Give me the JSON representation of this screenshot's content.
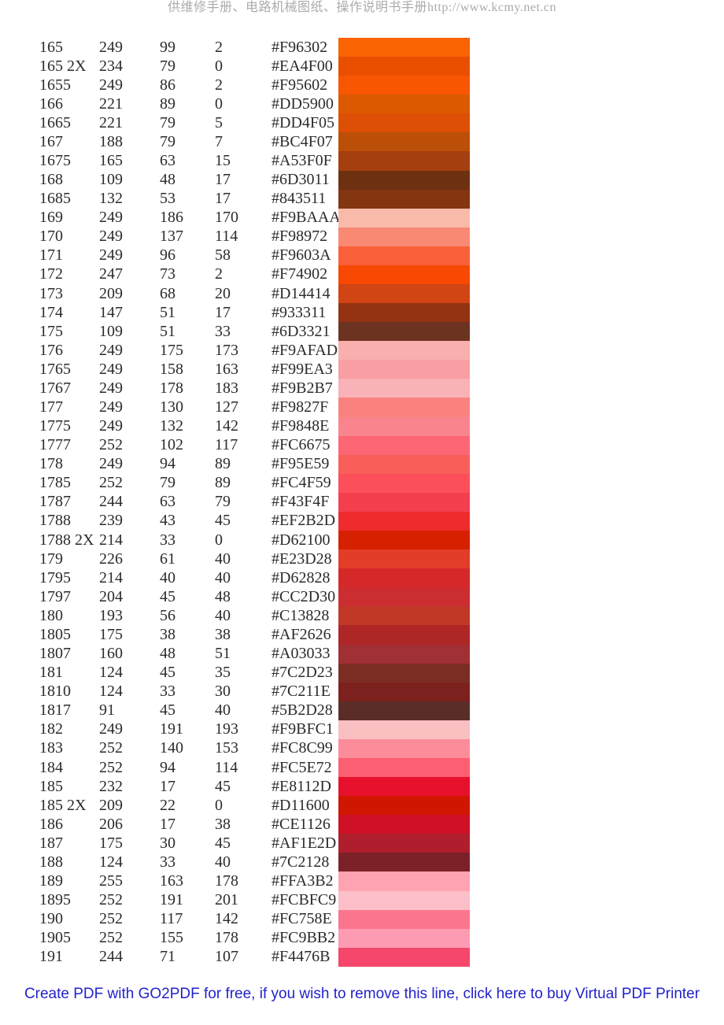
{
  "header": {
    "text": "供维修手册、电路机械图纸、操作说明书手册http://www.kcmy.net.cn"
  },
  "table": {
    "rows": [
      {
        "code": "165",
        "r": 249,
        "g": 99,
        "b": 2,
        "hex": "#F96302"
      },
      {
        "code": "165 2X",
        "r": 234,
        "g": 79,
        "b": 0,
        "hex": "#EA4F00"
      },
      {
        "code": "1655",
        "r": 249,
        "g": 86,
        "b": 2,
        "hex": "#F95602"
      },
      {
        "code": "166",
        "r": 221,
        "g": 89,
        "b": 0,
        "hex": "#DD5900"
      },
      {
        "code": "1665",
        "r": 221,
        "g": 79,
        "b": 5,
        "hex": "#DD4F05"
      },
      {
        "code": "167",
        "r": 188,
        "g": 79,
        "b": 7,
        "hex": "#BC4F07"
      },
      {
        "code": "1675",
        "r": 165,
        "g": 63,
        "b": 15,
        "hex": "#A53F0F"
      },
      {
        "code": "168",
        "r": 109,
        "g": 48,
        "b": 17,
        "hex": "#6D3011"
      },
      {
        "code": "1685",
        "r": 132,
        "g": 53,
        "b": 17,
        "hex": "#843511"
      },
      {
        "code": "169",
        "r": 249,
        "g": 186,
        "b": 170,
        "hex": "#F9BAAA"
      },
      {
        "code": "170",
        "r": 249,
        "g": 137,
        "b": 114,
        "hex": "#F98972"
      },
      {
        "code": "171",
        "r": 249,
        "g": 96,
        "b": 58,
        "hex": "#F9603A"
      },
      {
        "code": "172",
        "r": 247,
        "g": 73,
        "b": 2,
        "hex": "#F74902"
      },
      {
        "code": "173",
        "r": 209,
        "g": 68,
        "b": 20,
        "hex": "#D14414"
      },
      {
        "code": "174",
        "r": 147,
        "g": 51,
        "b": 17,
        "hex": "#933311"
      },
      {
        "code": "175",
        "r": 109,
        "g": 51,
        "b": 33,
        "hex": "#6D3321"
      },
      {
        "code": "176",
        "r": 249,
        "g": 175,
        "b": 173,
        "hex": "#F9AFAD"
      },
      {
        "code": "1765",
        "r": 249,
        "g": 158,
        "b": 163,
        "hex": "#F99EA3"
      },
      {
        "code": "1767",
        "r": 249,
        "g": 178,
        "b": 183,
        "hex": "#F9B2B7"
      },
      {
        "code": "177",
        "r": 249,
        "g": 130,
        "b": 127,
        "hex": "#F9827F"
      },
      {
        "code": "1775",
        "r": 249,
        "g": 132,
        "b": 142,
        "hex": "#F9848E"
      },
      {
        "code": "1777",
        "r": 252,
        "g": 102,
        "b": 117,
        "hex": "#FC6675"
      },
      {
        "code": "178",
        "r": 249,
        "g": 94,
        "b": 89,
        "hex": "#F95E59"
      },
      {
        "code": "1785",
        "r": 252,
        "g": 79,
        "b": 89,
        "hex": "#FC4F59"
      },
      {
        "code": "1787",
        "r": 244,
        "g": 63,
        "b": 79,
        "hex": "#F43F4F"
      },
      {
        "code": "1788",
        "r": 239,
        "g": 43,
        "b": 45,
        "hex": "#EF2B2D"
      },
      {
        "code": "1788 2X",
        "r": 214,
        "g": 33,
        "b": 0,
        "hex": "#D62100"
      },
      {
        "code": "179",
        "r": 226,
        "g": 61,
        "b": 40,
        "hex": "#E23D28"
      },
      {
        "code": "1795",
        "r": 214,
        "g": 40,
        "b": 40,
        "hex": "#D62828"
      },
      {
        "code": "1797",
        "r": 204,
        "g": 45,
        "b": 48,
        "hex": "#CC2D30"
      },
      {
        "code": "180",
        "r": 193,
        "g": 56,
        "b": 40,
        "hex": "#C13828"
      },
      {
        "code": "1805",
        "r": 175,
        "g": 38,
        "b": 38,
        "hex": "#AF2626"
      },
      {
        "code": "1807",
        "r": 160,
        "g": 48,
        "b": 51,
        "hex": "#A03033"
      },
      {
        "code": "181",
        "r": 124,
        "g": 45,
        "b": 35,
        "hex": "#7C2D23"
      },
      {
        "code": "1810",
        "r": 124,
        "g": 33,
        "b": 30,
        "hex": "#7C211E"
      },
      {
        "code": "1817",
        "r": 91,
        "g": 45,
        "b": 40,
        "hex": "#5B2D28"
      },
      {
        "code": "182",
        "r": 249,
        "g": 191,
        "b": 193,
        "hex": "#F9BFC1"
      },
      {
        "code": "183",
        "r": 252,
        "g": 140,
        "b": 153,
        "hex": "#FC8C99"
      },
      {
        "code": "184",
        "r": 252,
        "g": 94,
        "b": 114,
        "hex": "#FC5E72"
      },
      {
        "code": "185",
        "r": 232,
        "g": 17,
        "b": 45,
        "hex": "#E8112D"
      },
      {
        "code": "185 2X",
        "r": 209,
        "g": 22,
        "b": 0,
        "hex": "#D11600"
      },
      {
        "code": "186",
        "r": 206,
        "g": 17,
        "b": 38,
        "hex": "#CE1126"
      },
      {
        "code": "187",
        "r": 175,
        "g": 30,
        "b": 45,
        "hex": "#AF1E2D"
      },
      {
        "code": "188",
        "r": 124,
        "g": 33,
        "b": 40,
        "hex": "#7C2128"
      },
      {
        "code": "189",
        "r": 255,
        "g": 163,
        "b": 178,
        "hex": "#FFA3B2"
      },
      {
        "code": "1895",
        "r": 252,
        "g": 191,
        "b": 201,
        "hex": "#FCBFC9"
      },
      {
        "code": "190",
        "r": 252,
        "g": 117,
        "b": 142,
        "hex": "#FC758E"
      },
      {
        "code": "1905",
        "r": 252,
        "g": 155,
        "b": 178,
        "hex": "#FC9BB2"
      },
      {
        "code": "191",
        "r": 244,
        "g": 71,
        "b": 107,
        "hex": "#F4476B"
      }
    ]
  },
  "footer": {
    "text": "Create PDF with GO2PDF for free, if you wish to remove this line, click here to buy Virtual PDF Printer"
  }
}
